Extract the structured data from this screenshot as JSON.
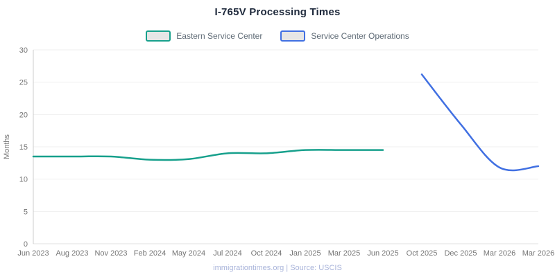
{
  "title": "I-765V Processing Times",
  "footer": "immigrationtimes.org | Source: USCIS",
  "colors": {
    "title_text": "#1f2a3c",
    "axis_text": "#757575",
    "legend_text": "#5f6b76",
    "legend_swatch_fill": "#e6e6e6",
    "grid_line": "#efefef",
    "zero_line": "#e2e2e2",
    "axis_line": "#cccccc",
    "footer_text": "#a9b4da",
    "eastern_line": "#17a08c",
    "scops_line": "#4170e2"
  },
  "chart_data": {
    "type": "line",
    "title": "I-765V Processing Times",
    "xlabel": "",
    "ylabel": "Months",
    "ylim": [
      0,
      30
    ],
    "ytick_step": 5,
    "grid": true,
    "legend_position": "top",
    "categories": [
      "Jun 2023",
      "Aug 2023",
      "Nov 2023",
      "Feb 2024",
      "May 2024",
      "Jul 2024",
      "Oct 2024",
      "Jan 2025",
      "Mar 2025",
      "Jun 2025",
      "Oct 2025",
      "Dec 2025",
      "Mar 2026",
      "Mar 2026"
    ],
    "series": [
      {
        "name": "Eastern Service Center",
        "color": "#17a08c",
        "values": [
          13.5,
          13.5,
          13.5,
          13,
          13.1,
          14,
          14,
          14.5,
          14.5,
          14.5,
          null,
          null,
          null,
          null
        ]
      },
      {
        "name": "Service Center Operations",
        "color": "#4170e2",
        "values": [
          null,
          null,
          null,
          null,
          null,
          null,
          null,
          null,
          null,
          null,
          26.2,
          18.5,
          11.8,
          12
        ]
      }
    ]
  }
}
